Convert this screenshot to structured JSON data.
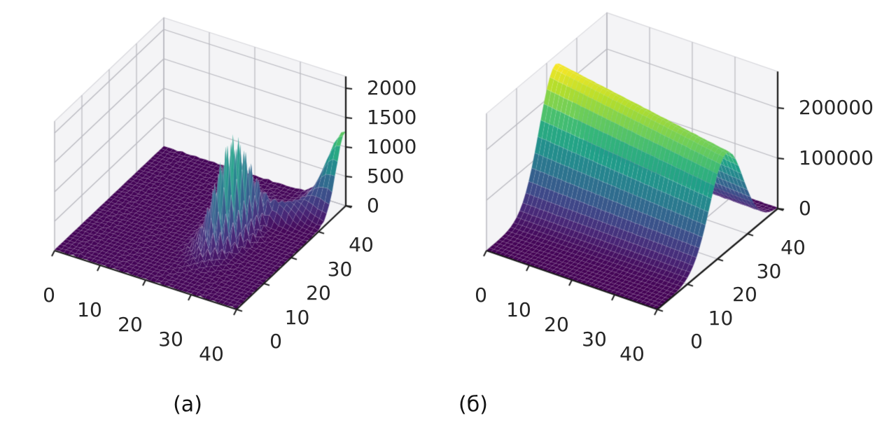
{
  "figure": {
    "background": "#ffffff",
    "captions": {
      "a": "(а)",
      "b": "(б)"
    }
  },
  "viridis_stops": [
    "#440154",
    "#482878",
    "#3e4989",
    "#31688e",
    "#26828e",
    "#1f9e89",
    "#35b779",
    "#6ece58",
    "#b5de2b",
    "#fde725"
  ],
  "style_colors": {
    "pane": "#f4f4f6",
    "pane_edge": "#d7d7dc",
    "grid": "#b8b8bf",
    "spine": "#1b1b1b",
    "tick_text": "#262626"
  },
  "chart_data": [
    {
      "type": "surface3d",
      "caption": "(а)",
      "xlim": [
        0,
        40
      ],
      "ylim": [
        0,
        40
      ],
      "zlim": [
        0,
        2000
      ],
      "xticks": [
        0,
        10,
        20,
        30,
        40
      ],
      "yticks": [
        0,
        10,
        20,
        30,
        40
      ],
      "zticks": [
        0,
        500,
        1000,
        1500,
        2000
      ],
      "grid": true,
      "legend": "none",
      "colormap": "viridis",
      "surface": {
        "grid_step": 1,
        "description": "Nearly flat near z=0 over most of the 40x40 domain; a spiky checkerboard-oscillating ridge along x≈26 for y≈10..34 with maximum ≈1650 (yellow spikes) near y≈22; a low diagonal wall links the ridge to a smooth narrow corner peak ≈1250 at (40,40); faint woven texture on the flat purple floor.",
        "features": [
          {
            "type": "oscillating_ridge",
            "center_x": 26,
            "sigma_x": 2.2,
            "peak_y": 22,
            "sigma_y_low": 5.5,
            "sigma_y_high": 5.0,
            "amplitude": 1650,
            "checker_low": 0.18
          },
          {
            "type": "diagonal_link",
            "from": [
              26,
              22
            ],
            "to": [
              40,
              40
            ],
            "sigma": 2.4,
            "amplitude": 430,
            "end_fade": 0.75
          },
          {
            "type": "corner_peak",
            "x": 40,
            "y": 40,
            "sigma": 3.4,
            "amplitude": 1150
          },
          {
            "type": "texture",
            "amplitude": 30,
            "freq": 2.8
          }
        ]
      }
    },
    {
      "type": "surface3d",
      "caption": "(б)",
      "xlim": [
        0,
        40
      ],
      "ylim": [
        0,
        40
      ],
      "zlim": [
        0,
        200000
      ],
      "xticks": [
        0,
        10,
        20,
        30,
        40
      ],
      "yticks": [
        0,
        10,
        20,
        30,
        40
      ],
      "zticks": [
        0,
        100000,
        200000
      ],
      "grid": true,
      "legend": "none",
      "colormap": "viridis",
      "surface": {
        "grid_step": 1,
        "description": "Smooth Gaussian ridge running along the x direction, centred at y≈23 (σ≈5.5); crest height decreases from ≈255000 at x=0 (bright yellow peak) to ≈195000 at x=40 (green rounded cap); flat purple floor in front of and behind the ridge.",
        "features": [
          {
            "type": "ridge_along_x",
            "center_y": 23,
            "sigma_y": 5.5,
            "amp_start": 255000,
            "amp_end": 195000
          },
          {
            "type": "texture",
            "amplitude": 900,
            "freq": 2.6
          }
        ]
      }
    }
  ]
}
